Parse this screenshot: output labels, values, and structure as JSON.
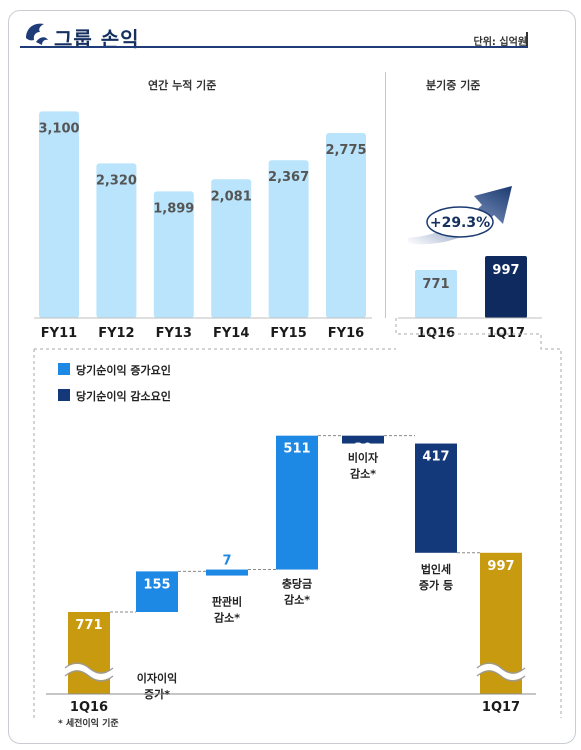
{
  "header": {
    "title": "그룹 손익",
    "unit": "단위: 십억원"
  },
  "colors": {
    "light_bar": "#b9e4fb",
    "q1_17": "#0f2a5e",
    "increase": "#1e88e5",
    "decrease": "#14397a",
    "gold": "#c89a0f",
    "brand": "#15305f"
  },
  "annual_label": "연간 누적 기준",
  "quarter_label": "분기중 기준",
  "growth_badge": "+29.3%",
  "footnote": "* 세전이익 기준",
  "legend": {
    "increase": "당기순이익 증가요인",
    "decrease": "당기순이익 감소요인"
  },
  "chart_data": [
    {
      "type": "bar",
      "title": "연간 누적 기준",
      "categories": [
        "FY11",
        "FY12",
        "FY13",
        "FY14",
        "FY15",
        "FY16"
      ],
      "values": [
        3100,
        2320,
        1899,
        2081,
        2367,
        2775
      ],
      "value_labels": [
        "3,100",
        "2,320",
        "1,899",
        "2,081",
        "2,367",
        "2,775"
      ],
      "ylim": [
        0,
        3300
      ]
    },
    {
      "type": "bar",
      "title": "분기중 기준",
      "categories": [
        "1Q16",
        "1Q17"
      ],
      "values": [
        771,
        997
      ],
      "value_labels": [
        "771",
        "997"
      ],
      "annotation": "+29.3%"
    },
    {
      "type": "bar",
      "subtype": "waterfall",
      "steps": [
        {
          "label": "1Q16",
          "value": 771,
          "kind": "total",
          "text_lines": [
            "1Q16"
          ],
          "category_label": "1Q16"
        },
        {
          "label": "이자이익 증가*",
          "value": 155,
          "kind": "increase",
          "text_lines": [
            "이자이익",
            "증가*"
          ]
        },
        {
          "label": "판관비 감소*",
          "value": 7,
          "kind": "increase",
          "text_lines": [
            "판관비",
            "감소*"
          ]
        },
        {
          "label": "충당금 감소*",
          "value": 511,
          "kind": "increase",
          "text_lines": [
            "충당금",
            "감소*"
          ]
        },
        {
          "label": "비이자 감소*",
          "value": 30,
          "kind": "decrease",
          "text_lines": [
            "비이자",
            "감소*"
          ]
        },
        {
          "label": "법인세 증가 등",
          "value": 417,
          "kind": "decrease",
          "text_lines": [
            "법인세",
            "증가 등"
          ]
        },
        {
          "label": "1Q17",
          "value": 997,
          "kind": "total",
          "text_lines": [
            "1Q17"
          ],
          "category_label": "1Q17"
        }
      ],
      "axis_break": true
    }
  ]
}
